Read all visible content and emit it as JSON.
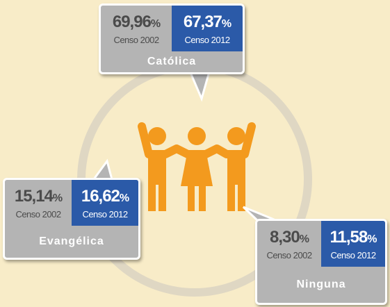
{
  "items": [
    {
      "name": "Católica",
      "censuses": [
        {
          "value": "69,96",
          "unit": "%",
          "label": "Censo 2002"
        },
        {
          "value": "67,37",
          "unit": "%",
          "label": "Censo 2012"
        }
      ]
    },
    {
      "name": "Evangélica",
      "censuses": [
        {
          "value": "15,14",
          "unit": "%",
          "label": "Censo 2002"
        },
        {
          "value": "16,62",
          "unit": "%",
          "label": "Censo 2012"
        }
      ]
    },
    {
      "name": "Ninguna",
      "censuses": [
        {
          "value": "8,30",
          "unit": "%",
          "label": "Censo 2002"
        },
        {
          "value": "11,58",
          "unit": "%",
          "label": "Censo 2012"
        }
      ]
    }
  ]
}
